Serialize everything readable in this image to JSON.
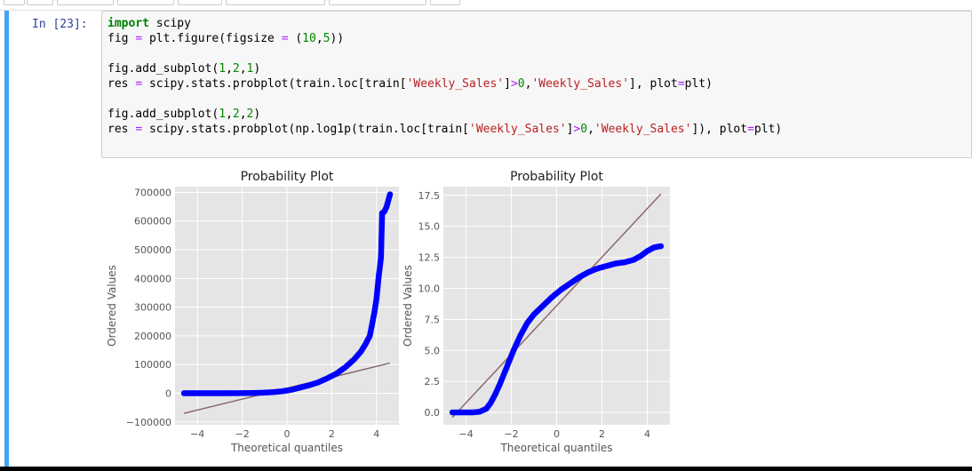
{
  "cell": {
    "prompt": "In [23]:",
    "code_lines": [
      "import scipy",
      "fig = plt.figure(figsize = (10,5))",
      "",
      "fig.add_subplot(1,2,1)",
      "res = scipy.stats.probplot(train.loc[train['Weekly_Sales']>0,'Weekly_Sales'], plot=plt)",
      "",
      "fig.add_subplot(1,2,2)",
      "res = scipy.stats.probplot(np.log1p(train.loc[train['Weekly_Sales']>0,'Weekly_Sales']), plot=plt)"
    ]
  },
  "colors": {
    "points": "#0000ff",
    "fit_line": "#8b6a6a",
    "panel_bg": "#e5e5e5",
    "grid": "#ffffff",
    "cell_bar": "#42a5f5"
  },
  "chart_data": [
    {
      "type": "scatter",
      "title": "Probability Plot",
      "xlabel": "Theoretical quantiles",
      "ylabel": "Ordered Values",
      "xlim": [
        -5,
        5
      ],
      "ylim": [
        -110000,
        720000
      ],
      "xticks": [
        -4,
        -2,
        0,
        2,
        4
      ],
      "xtick_labels": [
        "−4",
        "−2",
        "0",
        "2",
        "4"
      ],
      "yticks": [
        -100000,
        0,
        100000,
        200000,
        300000,
        400000,
        500000,
        600000,
        700000
      ],
      "ytick_labels": [
        "−100000",
        "0",
        "100000",
        "200000",
        "300000",
        "400000",
        "500000",
        "600000",
        "700000"
      ],
      "points": [
        [
          -4.6,
          0
        ],
        [
          -4.2,
          0
        ],
        [
          -3.8,
          0
        ],
        [
          -3.4,
          0
        ],
        [
          -3.0,
          0
        ],
        [
          -2.6,
          0
        ],
        [
          -2.2,
          200
        ],
        [
          -1.8,
          500
        ],
        [
          -1.4,
          1000
        ],
        [
          -1.0,
          2000
        ],
        [
          -0.6,
          4000
        ],
        [
          -0.2,
          7000
        ],
        [
          0.2,
          12000
        ],
        [
          0.6,
          20000
        ],
        [
          1.0,
          28000
        ],
        [
          1.4,
          38000
        ],
        [
          1.8,
          52000
        ],
        [
          2.2,
          68000
        ],
        [
          2.6,
          90000
        ],
        [
          3.0,
          118000
        ],
        [
          3.3,
          145000
        ],
        [
          3.5,
          170000
        ],
        [
          3.7,
          200000
        ],
        [
          3.8,
          240000
        ],
        [
          3.9,
          280000
        ],
        [
          4.0,
          330000
        ],
        [
          4.05,
          370000
        ],
        [
          4.1,
          410000
        ],
        [
          4.15,
          440000
        ],
        [
          4.2,
          475000
        ],
        [
          4.25,
          628000
        ],
        [
          4.35,
          633000
        ],
        [
          4.45,
          650000
        ],
        [
          4.6,
          693000
        ]
      ],
      "fit_line": [
        [
          -4.6,
          -70000
        ],
        [
          4.6,
          105000
        ]
      ],
      "grid": true
    },
    {
      "type": "scatter",
      "title": "Probability Plot",
      "xlabel": "Theoretical quantiles",
      "ylabel": "Ordered Values",
      "xlim": [
        -5,
        5
      ],
      "ylim": [
        -1,
        18.2
      ],
      "xticks": [
        -4,
        -2,
        0,
        2,
        4
      ],
      "xtick_labels": [
        "−4",
        "−2",
        "0",
        "2",
        "4"
      ],
      "yticks": [
        0,
        2.5,
        5,
        7.5,
        10,
        12.5,
        15,
        17.5
      ],
      "ytick_labels": [
        "0.0",
        "2.5",
        "5.0",
        "7.5",
        "10.0",
        "12.5",
        "15.0",
        "17.5"
      ],
      "points": [
        [
          -4.6,
          0
        ],
        [
          -4.3,
          0
        ],
        [
          -4.0,
          0
        ],
        [
          -3.7,
          0
        ],
        [
          -3.4,
          0.05
        ],
        [
          -3.1,
          0.3
        ],
        [
          -2.9,
          0.8
        ],
        [
          -2.7,
          1.5
        ],
        [
          -2.5,
          2.3
        ],
        [
          -2.3,
          3.2
        ],
        [
          -2.1,
          4.1
        ],
        [
          -1.9,
          5.0
        ],
        [
          -1.6,
          6.2
        ],
        [
          -1.3,
          7.2
        ],
        [
          -1.0,
          7.9
        ],
        [
          -0.6,
          8.6
        ],
        [
          -0.2,
          9.3
        ],
        [
          0.2,
          9.9
        ],
        [
          0.6,
          10.4
        ],
        [
          1.0,
          10.9
        ],
        [
          1.4,
          11.3
        ],
        [
          1.8,
          11.6
        ],
        [
          2.2,
          11.8
        ],
        [
          2.6,
          12.0
        ],
        [
          3.0,
          12.1
        ],
        [
          3.4,
          12.3
        ],
        [
          3.7,
          12.6
        ],
        [
          4.0,
          13.0
        ],
        [
          4.3,
          13.3
        ],
        [
          4.6,
          13.4
        ]
      ],
      "fit_line": [
        [
          -4.6,
          -0.4
        ],
        [
          4.6,
          17.6
        ]
      ],
      "grid": true
    }
  ]
}
